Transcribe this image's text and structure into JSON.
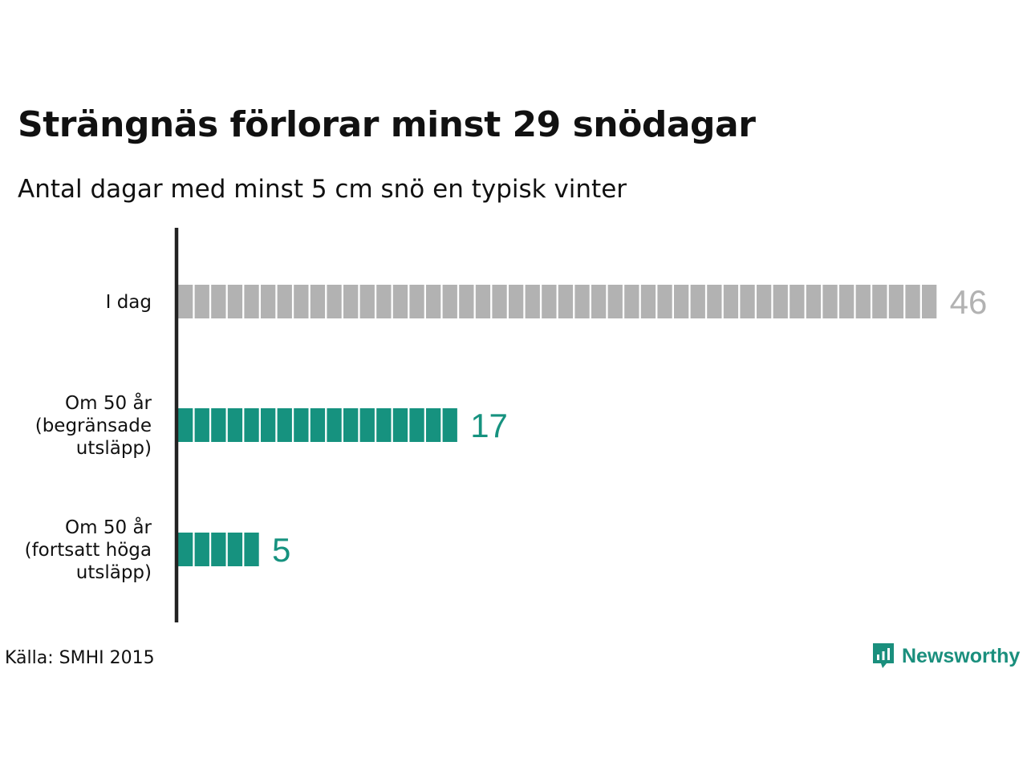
{
  "title": "Strängnäs förlorar minst 29 snödagar",
  "subtitle": "Antal dagar med minst 5 cm snö en typisk vinter",
  "source": "Källa: SMHI 2015",
  "brand": {
    "name": "Newsworthy",
    "icon": "newsworthy-logo-icon",
    "color": "#1a8f7d"
  },
  "colors": {
    "today": "#b2b2b2",
    "future": "#16927f",
    "axis": "#222222"
  },
  "chart_data": {
    "type": "bar",
    "orientation": "horizontal",
    "unit_per_block": 1,
    "categories": [
      [
        "I dag"
      ],
      [
        "Om 50 år",
        "(begränsade",
        "utsläpp)"
      ],
      [
        "Om 50 år",
        "(fortsatt höga",
        "utsläpp)"
      ]
    ],
    "values": [
      46,
      17,
      5
    ],
    "data_labels": [
      "46",
      "17",
      "5"
    ],
    "bar_colors": [
      "#b2b2b2",
      "#16927f",
      "#16927f"
    ],
    "xlim": [
      0,
      46
    ],
    "grid": false,
    "legend": "none"
  }
}
